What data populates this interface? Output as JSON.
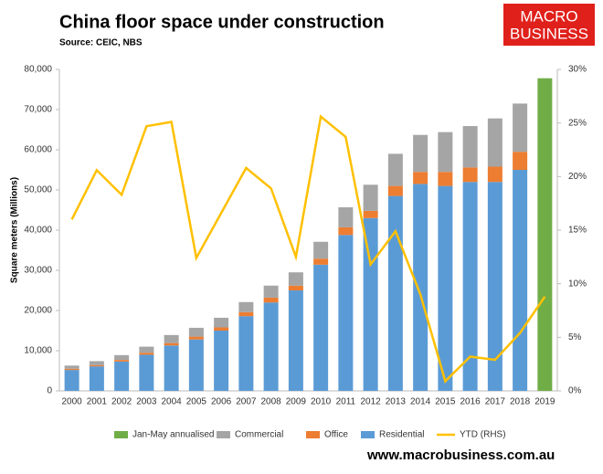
{
  "logo": {
    "line1": "MACRO",
    "line2": "BUSINESS"
  },
  "footer": "www.macrobusiness.com.au",
  "chart_data": {
    "type": "bar",
    "stacked": true,
    "title": "China floor space under construction",
    "subtitle": "Source: CEIC, NBS",
    "y_label": "Square meters (Millions)",
    "categories": [
      "2000",
      "2001",
      "2002",
      "2003",
      "2004",
      "2005",
      "2006",
      "2007",
      "2008",
      "2009",
      "2010",
      "2011",
      "2012",
      "2013",
      "2014",
      "2015",
      "2016",
      "2017",
      "2018",
      "2019"
    ],
    "series": [
      {
        "name": "Jan-May annualised",
        "type": "bar",
        "color": "#70ad47",
        "values": [
          null,
          null,
          null,
          null,
          null,
          null,
          null,
          null,
          null,
          null,
          null,
          null,
          null,
          null,
          null,
          null,
          null,
          null,
          null,
          77800
        ]
      },
      {
        "name": "Commercial",
        "type": "bar",
        "color": "#a5a5a5",
        "values": [
          800,
          1000,
          1200,
          1500,
          2000,
          2200,
          2400,
          2500,
          3000,
          3300,
          4200,
          5000,
          6500,
          8000,
          9200,
          9900,
          10300,
          12000,
          12000,
          null
        ]
      },
      {
        "name": "Office",
        "type": "bar",
        "color": "#ed7d31",
        "values": [
          300,
          300,
          400,
          500,
          600,
          700,
          800,
          1000,
          1200,
          1200,
          1500,
          1900,
          1800,
          2500,
          3000,
          3500,
          3600,
          3800,
          4500,
          null
        ]
      },
      {
        "name": "Residential",
        "type": "bar",
        "color": "#5b9bd5",
        "values": [
          5200,
          6100,
          7300,
          9000,
          11300,
          12800,
          15000,
          18600,
          22000,
          25000,
          31400,
          38800,
          43000,
          48500,
          51500,
          51000,
          52000,
          52000,
          55000,
          null
        ]
      },
      {
        "name": "YTD (RHS)",
        "type": "line",
        "axis": "y2",
        "color": "#ffc000",
        "values": [
          16,
          20.6,
          18.3,
          24.7,
          25.1,
          12.4,
          16.6,
          20.8,
          18.9,
          12.5,
          25.6,
          23.7,
          11.8,
          14.9,
          9,
          0.9,
          3.2,
          2.9,
          5.4,
          8.8
        ]
      }
    ],
    "ylim": [
      0,
      80000
    ],
    "yticks": [
      0,
      {
        "value": 10000,
        "label": "10,000"
      },
      {
        "value": 20000,
        "label": "20,000"
      },
      {
        "value": 30000,
        "label": "30,000"
      },
      {
        "value": 40000,
        "label": "40,000"
      },
      {
        "value": 50000,
        "label": "50,000"
      },
      {
        "value": 60000,
        "label": "60,000"
      },
      {
        "value": 70000,
        "label": "70,000"
      },
      {
        "value": 80000,
        "label": "80,000"
      }
    ],
    "y2lim": [
      0,
      30
    ],
    "y2ticks": [
      {
        "value": 0,
        "label": "0%"
      },
      {
        "value": 5,
        "label": "5%"
      },
      {
        "value": 10,
        "label": "10%"
      },
      {
        "value": 15,
        "label": "15%"
      },
      {
        "value": 20,
        "label": "20%"
      },
      {
        "value": 25,
        "label": "25%"
      },
      {
        "value": 30,
        "label": "30%"
      }
    ],
    "legend": "bottom"
  }
}
